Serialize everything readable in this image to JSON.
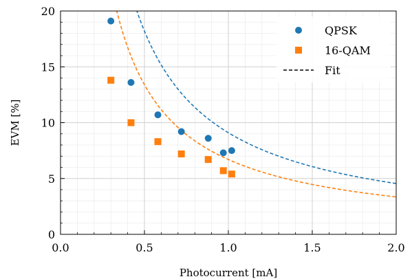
{
  "chart_data": {
    "type": "scatter",
    "title": "",
    "xlabel": "Photocurrent [mA]",
    "ylabel": "EVM [%]",
    "xlim": [
      0,
      2
    ],
    "ylim": [
      0,
      20
    ],
    "x_ticks": [
      "0.0",
      "0.5",
      "1.0",
      "1.5",
      "2.0"
    ],
    "y_ticks": [
      "0",
      "5",
      "10",
      "15",
      "20"
    ],
    "grid": true,
    "minor_grid": true,
    "legend_position": "top-right",
    "series": [
      {
        "name": "QPSK",
        "marker": "circle",
        "color": "#1f77b4",
        "points": [
          {
            "x": 0.3,
            "y": 19.1
          },
          {
            "x": 0.42,
            "y": 13.6
          },
          {
            "x": 0.58,
            "y": 10.7
          },
          {
            "x": 0.72,
            "y": 9.2
          },
          {
            "x": 0.88,
            "y": 8.6
          },
          {
            "x": 0.97,
            "y": 7.3
          },
          {
            "x": 1.02,
            "y": 7.5
          }
        ],
        "fit": {
          "model": "a/x",
          "a": 9.1
        }
      },
      {
        "name": "16-QAM",
        "marker": "square",
        "color": "#ff7f0e",
        "points": [
          {
            "x": 0.3,
            "y": 13.8
          },
          {
            "x": 0.42,
            "y": 10.0
          },
          {
            "x": 0.58,
            "y": 8.3
          },
          {
            "x": 0.72,
            "y": 7.2
          },
          {
            "x": 0.88,
            "y": 6.7
          },
          {
            "x": 0.97,
            "y": 5.7
          },
          {
            "x": 1.02,
            "y": 5.4
          }
        ],
        "fit": {
          "model": "a/x",
          "a": 6.7
        }
      }
    ],
    "legend": [
      {
        "label": "QPSK",
        "type": "circle",
        "color": "#1f77b4"
      },
      {
        "label": "16-QAM",
        "type": "square",
        "color": "#ff7f0e"
      },
      {
        "label": "Fit",
        "type": "dashed-line",
        "color": "#000000"
      }
    ]
  }
}
